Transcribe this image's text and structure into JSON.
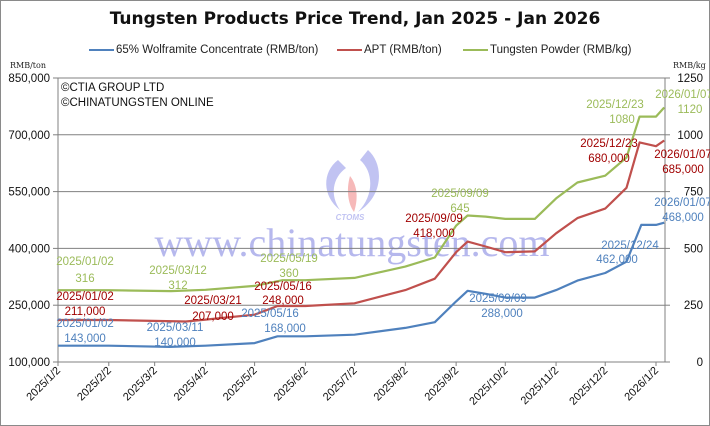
{
  "title": "Tungsten Products Price Trend, Jan 2025 - Jan 2026",
  "units": {
    "left": "RMB/ton",
    "right": "RMB/kg"
  },
  "copyright": [
    "©CTIA GROUP LTD",
    "©CHINATUNGSTEN ONLINE"
  ],
  "watermark": {
    "logo_text": "CTOMS",
    "url_text": "www.chinatungsten.com"
  },
  "colors": {
    "wolframite": "#4f81bd",
    "apt": "#c0504d",
    "powder": "#9bbb59",
    "apt_label": "#a00000",
    "gridline": "#808080"
  },
  "chart_data": {
    "type": "line",
    "title": "Tungsten Products Price Trend, Jan 2025 - Jan 2026",
    "xlabel": "",
    "ylabel": "RMB/ton",
    "y2label": "RMB/kg",
    "ylim": [
      100000,
      850000
    ],
    "y2lim": [
      0,
      1250
    ],
    "grid": true,
    "legend_position": "top",
    "y_ticks": [
      "850,000",
      "700,000",
      "550,000",
      "400,000",
      "250,000",
      "100,000"
    ],
    "y2_ticks": [
      "1250",
      "1000",
      "750",
      "500",
      "250",
      "0"
    ],
    "x_ticks": [
      "2025/1/2",
      "2025/2/2",
      "2025/3/2",
      "2025/4/2",
      "2025/5/2",
      "2025/6/2",
      "2025/7/2",
      "2025/8/2",
      "2025/9/2",
      "2025/10/2",
      "2025/11/2",
      "2025/12/2",
      "2026/1/2"
    ],
    "series": [
      {
        "name": "65% Wolframite Concentrate (RMB/ton)",
        "axis": "left",
        "x": [
          "2025/01/02",
          "2025/02/02",
          "2025/03/11",
          "2025/04/02",
          "2025/05/02",
          "2025/05/16",
          "2025/06/02",
          "2025/07/02",
          "2025/08/02",
          "2025/08/20",
          "2025/09/02",
          "2025/09/09",
          "2025/09/20",
          "2025/10/02",
          "2025/10/20",
          "2025/11/02",
          "2025/11/15",
          "2025/12/02",
          "2025/12/15",
          "2025/12/24",
          "2026/01/02",
          "2026/01/07"
        ],
        "values": [
          143000,
          143000,
          140000,
          143000,
          150000,
          168000,
          168000,
          172000,
          190000,
          205000,
          260000,
          288000,
          280000,
          270000,
          270000,
          290000,
          315000,
          335000,
          365000,
          462000,
          462000,
          468000
        ],
        "annotations": [
          {
            "date": "2025/01/02",
            "value": "143,000"
          },
          {
            "date": "2025/03/11",
            "value": "140,000"
          },
          {
            "date": "2025/05/16",
            "value": "168,000"
          },
          {
            "date": "2025/09/09",
            "value": "288,000"
          },
          {
            "date": "2025/12/24",
            "value": "462,000"
          },
          {
            "date": "2026/01/07",
            "value": "468,000"
          }
        ]
      },
      {
        "name": "APT (RMB/ton)",
        "axis": "left",
        "x": [
          "2025/01/02",
          "2025/02/02",
          "2025/03/21",
          "2025/04/02",
          "2025/05/02",
          "2025/05/16",
          "2025/06/02",
          "2025/07/02",
          "2025/08/02",
          "2025/08/20",
          "2025/09/02",
          "2025/09/09",
          "2025/09/20",
          "2025/10/02",
          "2025/10/20",
          "2025/11/02",
          "2025/11/15",
          "2025/12/02",
          "2025/12/15",
          "2025/12/23",
          "2026/01/02",
          "2026/01/07"
        ],
        "values": [
          211000,
          211000,
          207000,
          212000,
          225000,
          248000,
          248000,
          255000,
          290000,
          320000,
          390000,
          418000,
          405000,
          390000,
          392000,
          440000,
          480000,
          505000,
          560000,
          680000,
          670000,
          685000
        ],
        "annotations": [
          {
            "date": "2025/01/02",
            "value": "211,000"
          },
          {
            "date": "2025/03/21",
            "value": "207,000"
          },
          {
            "date": "2025/05/16",
            "value": "248,000"
          },
          {
            "date": "2025/09/09",
            "value": "418,000"
          },
          {
            "date": "2025/12/23",
            "value": "680,000"
          },
          {
            "date": "2026/01/07",
            "value": "685,000"
          }
        ]
      },
      {
        "name": "Tungsten Powder (RMB/kg)",
        "axis": "right",
        "x": [
          "2025/01/02",
          "2025/02/02",
          "2025/03/12",
          "2025/04/02",
          "2025/05/02",
          "2025/05/19",
          "2025/06/02",
          "2025/07/02",
          "2025/08/02",
          "2025/08/20",
          "2025/09/02",
          "2025/09/09",
          "2025/09/20",
          "2025/10/02",
          "2025/10/20",
          "2025/11/02",
          "2025/11/15",
          "2025/12/02",
          "2025/12/15",
          "2025/12/23",
          "2026/01/02",
          "2026/01/07"
        ],
        "values": [
          316,
          316,
          312,
          318,
          335,
          360,
          360,
          370,
          420,
          460,
          600,
          645,
          640,
          630,
          630,
          720,
          790,
          820,
          900,
          1080,
          1080,
          1120
        ],
        "annotations": [
          {
            "date": "2025/01/02",
            "value": "316"
          },
          {
            "date": "2025/03/12",
            "value": "312"
          },
          {
            "date": "2025/05/19",
            "value": "360"
          },
          {
            "date": "2025/09/09",
            "value": "645"
          },
          {
            "date": "2025/12/23",
            "value": "1080"
          },
          {
            "date": "2026/01/07",
            "value": "1120"
          }
        ]
      }
    ]
  }
}
